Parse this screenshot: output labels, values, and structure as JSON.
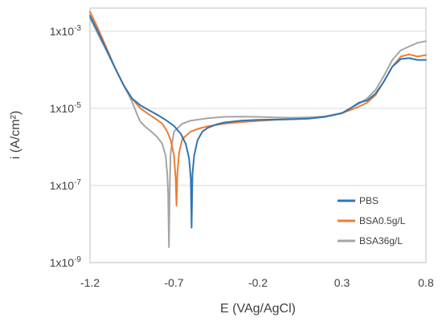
{
  "chart_data": {
    "type": "line",
    "title": "",
    "xlabel": "E (VAg/AgCl)",
    "ylabel": "i (A/cm²)",
    "xlim": [
      -1.2,
      0.8
    ],
    "ylim_log10": [
      -9,
      -2.4
    ],
    "y_scale": "log",
    "grid": "horizontal",
    "legend_position": "bottom-right",
    "x_ticks": [
      {
        "value": -1.2,
        "label": "-1.2"
      },
      {
        "value": -0.7,
        "label": "-0.7"
      },
      {
        "value": -0.2,
        "label": "-0.2"
      },
      {
        "value": 0.3,
        "label": "0.3"
      },
      {
        "value": 0.8,
        "label": "0.8"
      }
    ],
    "y_ticks": [
      {
        "value": 1e-09,
        "base": "1x10",
        "exp": "-9"
      },
      {
        "value": 1e-07,
        "base": "1x10",
        "exp": "-7"
      },
      {
        "value": 1e-05,
        "base": "1x10",
        "exp": "-5"
      },
      {
        "value": 0.001,
        "base": "1x10",
        "exp": "-3"
      }
    ],
    "series": [
      {
        "name": "PBS",
        "color": "#2e75b6",
        "points": [
          [
            -1.2,
            0.0025
          ],
          [
            -1.15,
            0.0009
          ],
          [
            -1.1,
            0.00032
          ],
          [
            -1.05,
            0.00011
          ],
          [
            -1.0,
            4e-05
          ],
          [
            -0.95,
            1.8e-05
          ],
          [
            -0.9,
            1.2e-05
          ],
          [
            -0.85,
            9e-06
          ],
          [
            -0.8,
            6.8e-06
          ],
          [
            -0.75,
            5e-06
          ],
          [
            -0.7,
            3.5e-06
          ],
          [
            -0.66,
            2.2e-06
          ],
          [
            -0.63,
            1.2e-06
          ],
          [
            -0.61,
            5e-07
          ],
          [
            -0.6,
            1.5e-07
          ],
          [
            -0.595,
            8e-09
          ],
          [
            -0.59,
            2e-07
          ],
          [
            -0.58,
            6e-07
          ],
          [
            -0.56,
            1.5e-06
          ],
          [
            -0.53,
            2.5e-06
          ],
          [
            -0.5,
            3.1e-06
          ],
          [
            -0.45,
            3.8e-06
          ],
          [
            -0.4,
            4.3e-06
          ],
          [
            -0.3,
            4.8e-06
          ],
          [
            -0.2,
            5e-06
          ],
          [
            -0.1,
            5.1e-06
          ],
          [
            0.0,
            5.2e-06
          ],
          [
            0.1,
            5.4e-06
          ],
          [
            0.2,
            6e-06
          ],
          [
            0.3,
            7.5e-06
          ],
          [
            0.35,
            1e-05
          ],
          [
            0.4,
            1.4e-05
          ],
          [
            0.45,
            1.6e-05
          ],
          [
            0.5,
            2.4e-05
          ],
          [
            0.55,
            5e-05
          ],
          [
            0.6,
            0.00012
          ],
          [
            0.65,
            0.00019
          ],
          [
            0.7,
            0.0002
          ],
          [
            0.75,
            0.00018
          ],
          [
            0.8,
            0.00018
          ]
        ]
      },
      {
        "name": "BSA0.5g/L",
        "color": "#ed7d31",
        "points": [
          [
            -1.2,
            0.0032
          ],
          [
            -1.15,
            0.0011
          ],
          [
            -1.1,
            0.00035
          ],
          [
            -1.05,
            0.00011
          ],
          [
            -1.0,
            4e-05
          ],
          [
            -0.95,
            1.8e-05
          ],
          [
            -0.9,
            1e-05
          ],
          [
            -0.85,
            7e-06
          ],
          [
            -0.8,
            5e-06
          ],
          [
            -0.77,
            4e-06
          ],
          [
            -0.74,
            2.5e-06
          ],
          [
            -0.72,
            1.5e-06
          ],
          [
            -0.7,
            6e-07
          ],
          [
            -0.69,
            1.5e-07
          ],
          [
            -0.685,
            3e-08
          ],
          [
            -0.68,
            2e-07
          ],
          [
            -0.67,
            7e-07
          ],
          [
            -0.65,
            1.6e-06
          ],
          [
            -0.6,
            2.5e-06
          ],
          [
            -0.55,
            3e-06
          ],
          [
            -0.5,
            3.4e-06
          ],
          [
            -0.45,
            3.7e-06
          ],
          [
            -0.4,
            4e-06
          ],
          [
            -0.3,
            4.4e-06
          ],
          [
            -0.2,
            4.7e-06
          ],
          [
            -0.1,
            5e-06
          ],
          [
            0.0,
            5.2e-06
          ],
          [
            0.1,
            5.4e-06
          ],
          [
            0.2,
            6e-06
          ],
          [
            0.3,
            7.5e-06
          ],
          [
            0.35,
            9e-06
          ],
          [
            0.4,
            1.1e-05
          ],
          [
            0.45,
            1.4e-05
          ],
          [
            0.5,
            2.2e-05
          ],
          [
            0.55,
            5e-05
          ],
          [
            0.6,
            0.00012
          ],
          [
            0.65,
            0.00022
          ],
          [
            0.7,
            0.00025
          ],
          [
            0.75,
            0.00022
          ],
          [
            0.8,
            0.00024
          ]
        ]
      },
      {
        "name": "BSA36g/L",
        "color": "#a5a5a5",
        "points": [
          [
            -1.2,
            0.0022
          ],
          [
            -1.15,
            0.0008
          ],
          [
            -1.1,
            0.0003
          ],
          [
            -1.05,
            0.00011
          ],
          [
            -1.0,
            4e-05
          ],
          [
            -0.95,
            1.5e-05
          ],
          [
            -0.92,
            7e-06
          ],
          [
            -0.9,
            4.5e-06
          ],
          [
            -0.87,
            3.3e-06
          ],
          [
            -0.84,
            2.6e-06
          ],
          [
            -0.8,
            1.8e-06
          ],
          [
            -0.77,
            1.2e-06
          ],
          [
            -0.75,
            6e-07
          ],
          [
            -0.74,
            2e-07
          ],
          [
            -0.735,
            6e-08
          ],
          [
            -0.73,
            2.5e-09
          ],
          [
            -0.725,
            1e-07
          ],
          [
            -0.72,
            7e-07
          ],
          [
            -0.7,
            2.5e-06
          ],
          [
            -0.65,
            4e-06
          ],
          [
            -0.6,
            4.8e-06
          ],
          [
            -0.5,
            5.5e-06
          ],
          [
            -0.4,
            6e-06
          ],
          [
            -0.3,
            6.1e-06
          ],
          [
            -0.2,
            6e-06
          ],
          [
            -0.1,
            5.8e-06
          ],
          [
            0.0,
            5.7e-06
          ],
          [
            0.1,
            5.8e-06
          ],
          [
            0.2,
            6.2e-06
          ],
          [
            0.3,
            7.5e-06
          ],
          [
            0.35,
            1e-05
          ],
          [
            0.4,
            1.3e-05
          ],
          [
            0.45,
            1.8e-05
          ],
          [
            0.5,
            3e-05
          ],
          [
            0.55,
            7e-05
          ],
          [
            0.6,
            0.00018
          ],
          [
            0.65,
            0.00032
          ],
          [
            0.7,
            0.0004
          ],
          [
            0.75,
            0.0005
          ],
          [
            0.8,
            0.00055
          ]
        ]
      }
    ]
  }
}
